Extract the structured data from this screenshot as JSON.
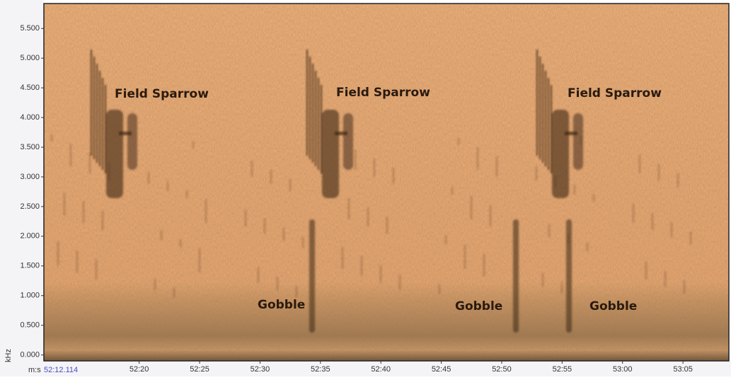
{
  "chart_data": {
    "type": "spectrogram",
    "y_label": "kHz",
    "x_label": "m:s",
    "ylim": [
      -0.1,
      5.92
    ],
    "yticks": [
      {
        "value": 0,
        "label": "0.000"
      },
      {
        "value": 0.5,
        "label": "0.500"
      },
      {
        "value": 1,
        "label": "1.000"
      },
      {
        "value": 1.5,
        "label": "1.500"
      },
      {
        "value": 2,
        "label": "2.000"
      },
      {
        "value": 2.5,
        "label": "2.500"
      },
      {
        "value": 3,
        "label": "3.000"
      },
      {
        "value": 3.5,
        "label": "3.500"
      },
      {
        "value": 4,
        "label": "4.000"
      },
      {
        "value": 4.5,
        "label": "4.500"
      },
      {
        "value": 5,
        "label": "5.000"
      },
      {
        "value": 5.5,
        "label": "5.500"
      }
    ],
    "xlim": [
      3132.114,
      3188.8
    ],
    "x_start": {
      "value": 3132.114,
      "label": "52:12.114"
    },
    "xticks": [
      {
        "value": 3140,
        "label": "52:20"
      },
      {
        "value": 3145,
        "label": "52:25"
      },
      {
        "value": 3150,
        "label": "52:30"
      },
      {
        "value": 3155,
        "label": "52:35"
      },
      {
        "value": 3160,
        "label": "52:40"
      },
      {
        "value": 3165,
        "label": "52:45"
      },
      {
        "value": 3170,
        "label": "52:50"
      },
      {
        "value": 3175,
        "label": "52:55"
      },
      {
        "value": 3180,
        "label": "53:00"
      },
      {
        "value": 3185,
        "label": "53:05"
      }
    ],
    "annotations": [
      "Field Sparrow",
      "Field Sparrow",
      "Field Sparrow",
      "Gobble",
      "Gobble",
      "Gobble"
    ]
  }
}
